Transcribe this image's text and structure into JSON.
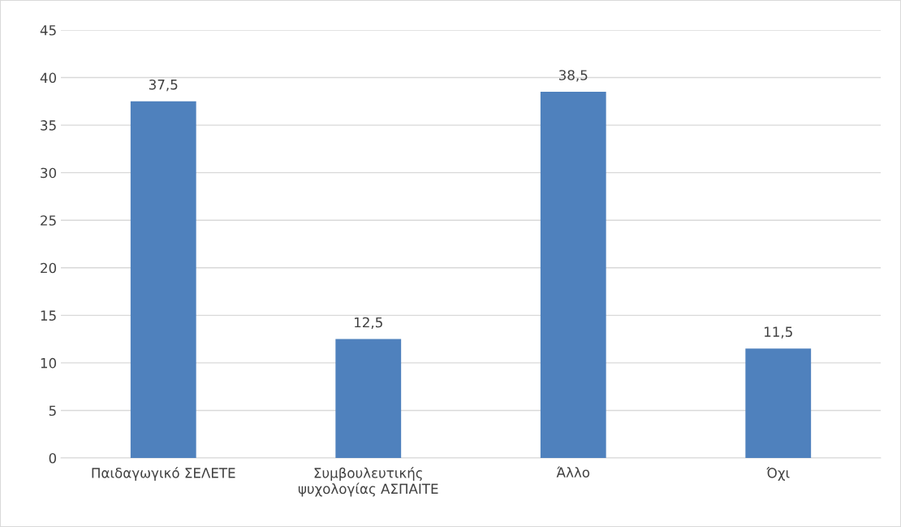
{
  "chart_data": {
    "type": "bar",
    "categories": [
      "Παιδαγωγικό ΣΕΛΕΤΕ",
      "Συμβουλευτικής\nψυχολογίας ΑΣΠΑΙΤΕ",
      "Άλλο",
      "Όχι"
    ],
    "values": [
      37.5,
      12.5,
      38.5,
      11.5
    ],
    "value_labels": [
      "37,5",
      "12,5",
      "38,5",
      "11,5"
    ],
    "color": "#4f81bd",
    "ylim": [
      0,
      45
    ],
    "yticks": [
      0,
      5,
      10,
      15,
      20,
      25,
      30,
      35,
      40,
      45
    ],
    "grid": "y",
    "legend": false
  }
}
